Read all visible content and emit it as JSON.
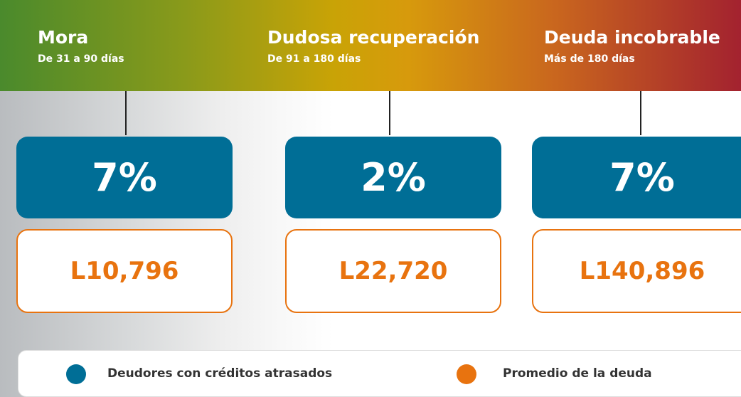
{
  "columns": [
    {
      "title": "Mora",
      "subtitle": "De 31 a 90 días",
      "percent": "7%",
      "amount": "L10,796"
    },
    {
      "title": "Dudosa recuperación",
      "subtitle": "De 91 a 180 días",
      "percent": "2%",
      "amount": "L22,720"
    },
    {
      "title": "Deuda incobrable",
      "subtitle": "Más de 180 días",
      "percent": "7%",
      "amount": "L140,896"
    }
  ],
  "legend": [
    {
      "label": "Deudores con créditos atrasados",
      "color": "#006e96"
    },
    {
      "label": "Promedio de la deuda",
      "color": "#e8730f"
    }
  ]
}
